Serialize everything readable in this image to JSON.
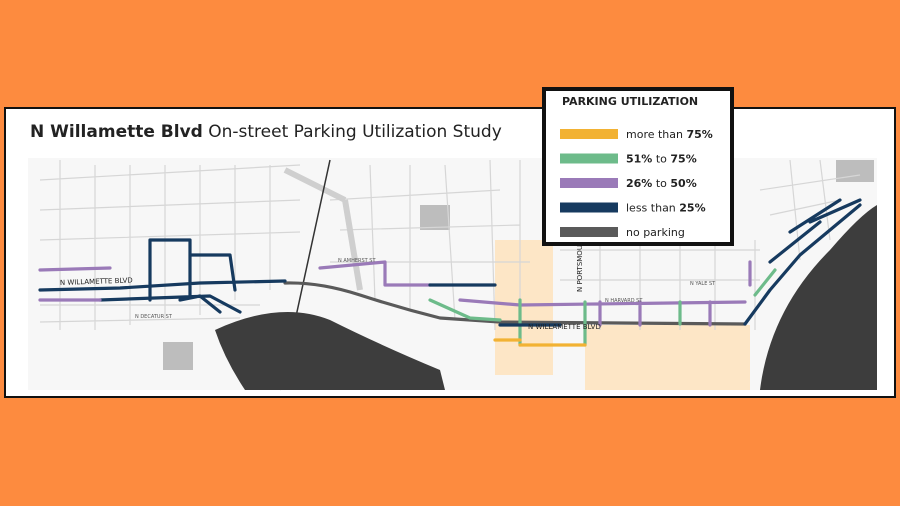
{
  "header": {
    "title_bold": "N Willamette Blvd",
    "title_rest": "On-street Parking Utilization Study"
  },
  "legend": {
    "title": "PARKING UTILIZATION",
    "items": [
      {
        "color": "#f2b233",
        "parts": [
          {
            "text": "more than ",
            "bold": false
          },
          {
            "text": "75%",
            "bold": true
          }
        ]
      },
      {
        "color": "#6dbb8a",
        "parts": [
          {
            "text": "51%",
            "bold": true
          },
          {
            "text": " to ",
            "bold": false
          },
          {
            "text": "75%",
            "bold": true
          }
        ]
      },
      {
        "color": "#9a7ab8",
        "parts": [
          {
            "text": "26%",
            "bold": true
          },
          {
            "text": " to ",
            "bold": false
          },
          {
            "text": "50%",
            "bold": true
          }
        ]
      },
      {
        "color": "#163a5f",
        "parts": [
          {
            "text": "less than ",
            "bold": false
          },
          {
            "text": "25%",
            "bold": true
          }
        ]
      },
      {
        "color": "#5a5a5a",
        "parts": [
          {
            "text": "no parking",
            "bold": false
          }
        ]
      }
    ]
  },
  "map": {
    "labels": [
      "N WILLAMETTE BLVD",
      "N WILLAMETTE BLVD",
      "N PORTSMOUTH",
      "N DECATUR ST",
      "N AMHERST ST",
      "N HARVARD ST",
      "N YALE ST"
    ]
  }
}
